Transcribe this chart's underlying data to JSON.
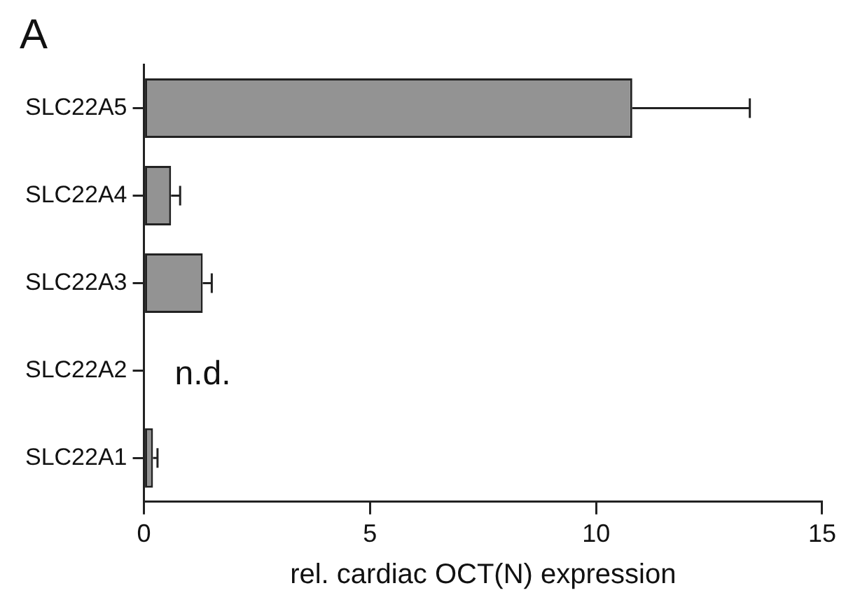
{
  "chart_data": {
    "type": "bar",
    "orientation": "horizontal",
    "title": "A",
    "xlabel": "rel. cardiac OCT(N) expression",
    "categories": [
      "SLC22A5",
      "SLC22A4",
      "SLC22A3",
      "SLC22A2",
      "SLC22A1"
    ],
    "values": [
      10.8,
      0.6,
      1.3,
      null,
      0.2
    ],
    "errors": [
      [
        10.8,
        13.4
      ],
      [
        0.6,
        0.8
      ],
      [
        1.3,
        1.5
      ],
      null,
      [
        0.2,
        0.3
      ]
    ],
    "color": "#939393",
    "xlim": [
      0,
      15
    ],
    "xticks": [
      0,
      5,
      10,
      15
    ],
    "annotations": [
      "n.d."
    ]
  }
}
